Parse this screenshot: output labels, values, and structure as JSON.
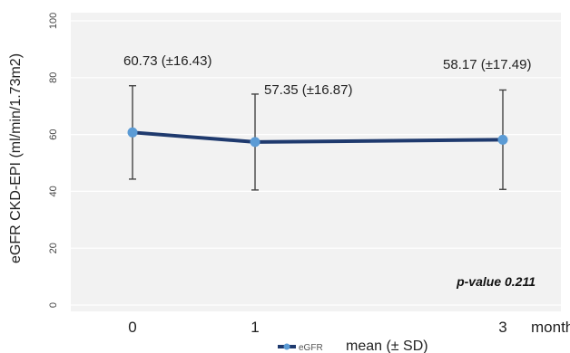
{
  "chart_data": {
    "type": "line",
    "ylabel": "eGFR CKD-EPI (ml/min/1.73m2)",
    "x_unit_label": "months",
    "categories": [
      "0",
      "1",
      "3"
    ],
    "y_ticks": [
      "0",
      "20",
      "40",
      "60",
      "80",
      "100"
    ],
    "ylim": [
      0,
      100
    ],
    "grid": true,
    "series": [
      {
        "name": "eGFR",
        "values": [
          60.73,
          57.35,
          58.17
        ],
        "error": [
          16.43,
          16.87,
          17.49
        ],
        "point_labels": [
          "60.73 (±16.43)",
          "57.35 (±16.87)",
          "58.17 (±17.49)"
        ],
        "color": "#1f3a6e",
        "marker_color": "#5b9bd5",
        "errorbar_color": "#444444"
      }
    ],
    "annotation": "p-value 0.211",
    "legend_note": "mean (± SD)",
    "legend_position": "bottom-center",
    "background": "#f2f2f2"
  }
}
